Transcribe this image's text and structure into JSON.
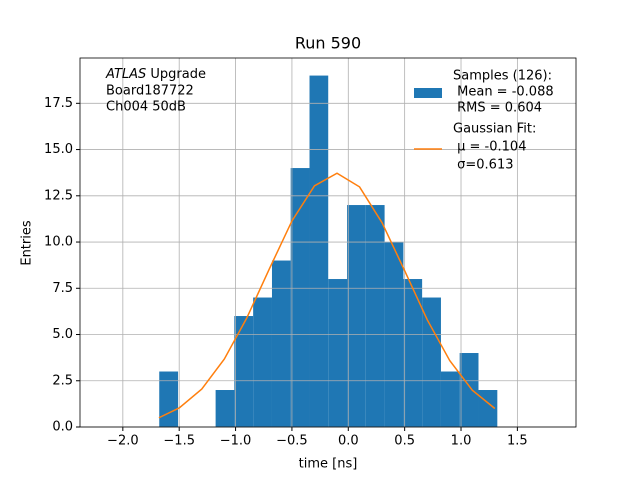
{
  "chart_data": {
    "type": "histogram",
    "title": "Run 590",
    "xlabel": "time [ns]",
    "ylabel": "Entries",
    "annotation": [
      {
        "text": "ATLAS",
        "italic": true
      },
      {
        "text": " Upgrade"
      }
    ],
    "annotation_lines": [
      " Board187722",
      " Ch004 50dB"
    ],
    "bins": [
      -1.677,
      -1.51,
      -1.344,
      -1.177,
      -1.011,
      -0.844,
      -0.677,
      -0.511,
      -0.344,
      -0.178,
      -0.011,
      0.155,
      0.322,
      0.489,
      0.655,
      0.822,
      0.988,
      1.155,
      1.322
    ],
    "counts": [
      3,
      0,
      0,
      2,
      6,
      7,
      9,
      14,
      19,
      8,
      12,
      12,
      10,
      8,
      7,
      3,
      4,
      2
    ],
    "color": "#1f77b4",
    "name": "Samples (126):",
    "legend_lines": [
      " Mean = -0.088",
      " RMS = 0.604"
    ],
    "fit": {
      "type": "line",
      "name": "Gaussian Fit:",
      "legend_lines": [
        " μ = -0.104",
        " σ=0.613"
      ],
      "color": "#ff7f0e",
      "x": [
        -1.68,
        -1.5,
        -1.3,
        -1.1,
        -0.9,
        -0.7,
        -0.5,
        -0.3,
        -0.1,
        0.1,
        0.3,
        0.5,
        0.7,
        0.9,
        1.1,
        1.3
      ],
      "values": [
        0.5,
        1.03,
        2.05,
        3.67,
        5.9,
        8.55,
        11.14,
        13.04,
        13.72,
        12.98,
        11.04,
        8.45,
        5.8,
        3.59,
        1.99,
        1.0
      ]
    },
    "xlim": [
      -2.38,
      2.02
    ],
    "ylim": [
      0,
      19.95
    ],
    "xticks": [
      {
        "value": -2,
        "label": "−2.0"
      },
      {
        "value": -1.5,
        "label": "−1.5"
      },
      {
        "value": -1,
        "label": "−1.0"
      },
      {
        "value": -0.5,
        "label": "−0.5"
      },
      {
        "value": 0,
        "label": "0.0"
      },
      0.5,
      {
        "value": 1,
        "label": "1.0"
      },
      1.5
    ],
    "yticks": [
      {
        "value": 0,
        "label": "0.0"
      },
      2.5,
      {
        "value": 5,
        "label": "5.0"
      },
      7.5,
      {
        "value": 10,
        "label": "10.0"
      },
      12.5,
      {
        "value": 15,
        "label": "15.0"
      },
      17.5
    ],
    "grid": true,
    "legend": "upper right"
  }
}
